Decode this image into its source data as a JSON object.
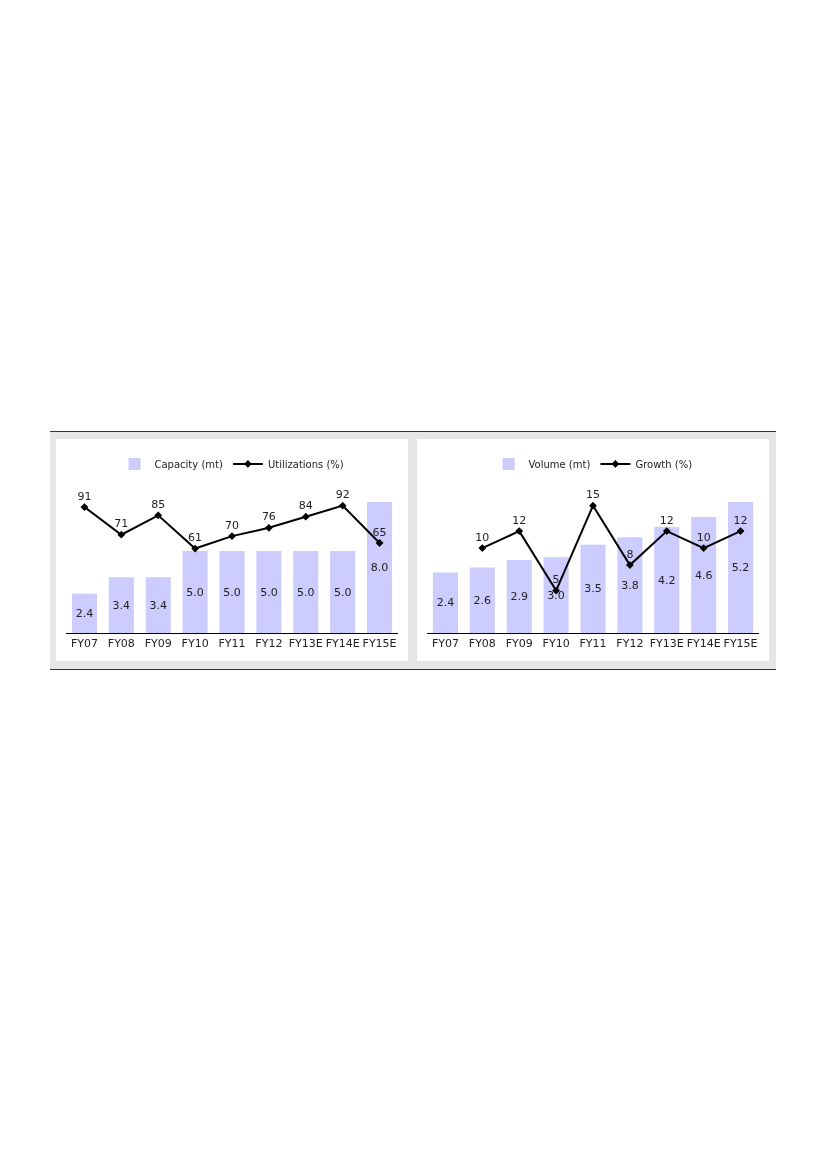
{
  "chart_data": [
    {
      "type": "bar",
      "categories": [
        "FY07",
        "FY08",
        "FY09",
        "FY10",
        "FY11",
        "FY12",
        "FY13E",
        "FY14E",
        "FY15E"
      ],
      "series": [
        {
          "name": "Capacity (mt)",
          "color": "#ccccff",
          "values": [
            2.4,
            3.4,
            3.4,
            5.0,
            5.0,
            5.0,
            5.0,
            5.0,
            8.0
          ],
          "value_labels": [
            "2.4",
            "3.4",
            "3.4",
            "5.0",
            "5.0",
            "5.0",
            "5.0",
            "5.0",
            "8.0"
          ]
        },
        {
          "name": "Utilizations (%)",
          "type": "line",
          "axis": "y2",
          "color": "#000000",
          "marker": "diamond",
          "line_style": "solid",
          "values": [
            91,
            71,
            85,
            61,
            70,
            76,
            84,
            92,
            65
          ],
          "value_labels": [
            "91",
            "71",
            "85",
            "61",
            "70",
            "76",
            "84",
            "92",
            "65"
          ]
        }
      ],
      "legend": "top",
      "grid": false,
      "tick_labels": "x"
    },
    {
      "type": "bar",
      "categories": [
        "FY07",
        "FY08",
        "FY09",
        "FY10",
        "FY11",
        "FY12",
        "FY13E",
        "FY14E",
        "FY15E"
      ],
      "series": [
        {
          "name": "Volume (mt)",
          "color": "#ccccff",
          "values": [
            2.4,
            2.6,
            2.9,
            3.0,
            3.5,
            3.8,
            4.2,
            4.6,
            5.2
          ],
          "value_labels": [
            "2.4",
            "2.6",
            "2.9",
            "3.0",
            "3.5",
            "3.8",
            "4.2",
            "4.6",
            "5.2"
          ]
        },
        {
          "name": "Growth (%)",
          "type": "line",
          "axis": "y2",
          "color": "#000000",
          "marker": "diamond",
          "line_style": "solid",
          "values": [
            null,
            10,
            12,
            5,
            15,
            8,
            12,
            10,
            12
          ],
          "value_labels": [
            null,
            "10",
            "12",
            "5",
            "15",
            "8",
            "12",
            "10",
            "12"
          ]
        }
      ],
      "legend": "top",
      "grid": false,
      "tick_labels": "x"
    }
  ]
}
